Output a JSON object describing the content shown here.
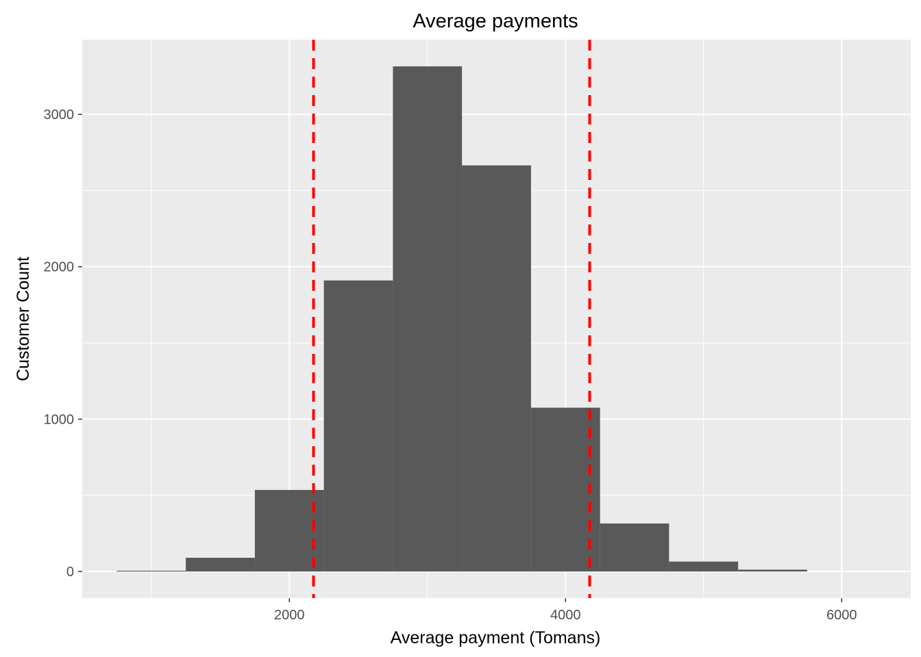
{
  "chart_data": {
    "type": "bar",
    "title": "Average payments",
    "xlabel": "Average payment (Tomans)",
    "ylabel": "Customer Count",
    "bins": [
      {
        "x0": 750,
        "x1": 1250,
        "count": 5
      },
      {
        "x0": 1250,
        "x1": 1750,
        "count": 90
      },
      {
        "x0": 1750,
        "x1": 2250,
        "count": 535
      },
      {
        "x0": 2250,
        "x1": 2750,
        "count": 1910
      },
      {
        "x0": 2750,
        "x1": 3250,
        "count": 3315
      },
      {
        "x0": 3250,
        "x1": 3750,
        "count": 2665
      },
      {
        "x0": 3750,
        "x1": 4250,
        "count": 1075
      },
      {
        "x0": 4250,
        "x1": 4750,
        "count": 315
      },
      {
        "x0": 4750,
        "x1": 5250,
        "count": 65
      },
      {
        "x0": 5250,
        "x1": 5750,
        "count": 12
      }
    ],
    "reference_lines": [
      {
        "x": 2175,
        "style": "dashed",
        "color": "#ff0000"
      },
      {
        "x": 4175,
        "style": "dashed",
        "color": "#ff0000"
      }
    ],
    "xlim": [
      500,
      6500
    ],
    "ylim": [
      -175,
      3490
    ],
    "x_ticks": [
      2000,
      4000,
      6000
    ],
    "y_ticks": [
      0,
      1000,
      2000,
      3000
    ],
    "grid": true,
    "colors": {
      "bar": "#595959",
      "panel": "#ebebeb",
      "grid": "#ffffff",
      "reference": "#ff0000"
    }
  }
}
